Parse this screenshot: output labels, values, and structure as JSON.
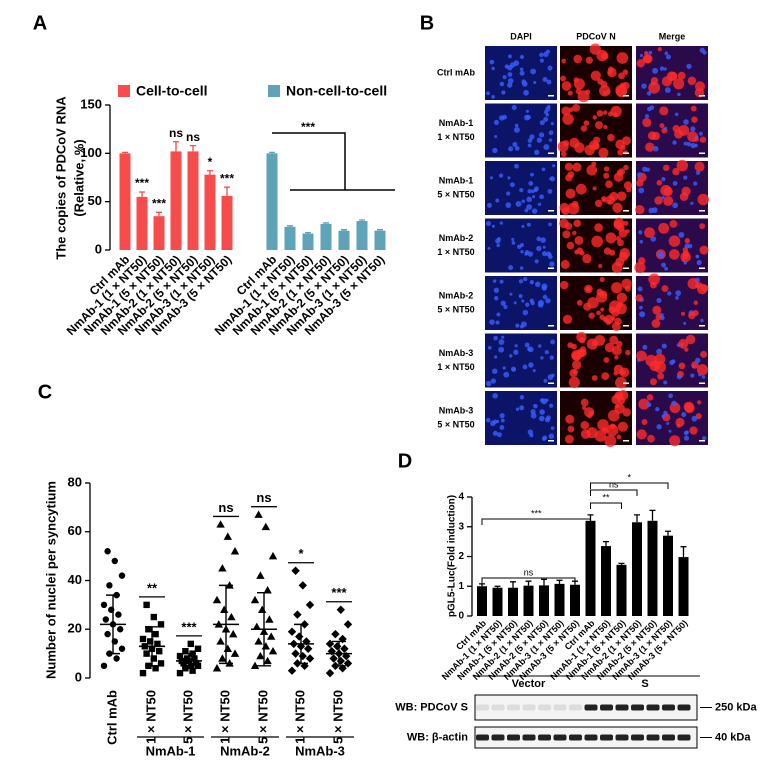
{
  "chart_data": [
    {
      "type": "bar",
      "panel": "A",
      "ylabel": [
        "The copies of PDCoV RNA",
        "(Relative, %)"
      ],
      "categories": [
        "Ctrl mAb",
        "NmAb-1 (1 × NT50)",
        "NmAb-1 (5 × NT50)",
        "NmAb-2 (1 × NT50)",
        "NmAb-2 (5 × NT50)",
        "NmAb-3 (1 × NT50)",
        "NmAb-3 (5 × NT50)",
        "Ctrl mAb",
        "NmAb-1 (1 × NT50)",
        "NmAb-1 (5 × NT50)",
        "NmAb-2 (1 × NT50)",
        "NmAb-2 (5 × NT50)",
        "NmAb-3 (1 × NT50)",
        "NmAb-3 (5 × NT50)"
      ],
      "series": [
        {
          "name": "Cell-to-cell",
          "color": "#f64c4c",
          "values": [
            100,
            55,
            35,
            102,
            102,
            78,
            56,
            null,
            null,
            null,
            null,
            null,
            null,
            null
          ],
          "errors": [
            1,
            5,
            4,
            10,
            6,
            4,
            9,
            null,
            null,
            null,
            null,
            null,
            null,
            null
          ],
          "significance": [
            null,
            "***",
            "***",
            "ns",
            "ns",
            "*",
            "***",
            null,
            null,
            null,
            null,
            null,
            null,
            null
          ]
        },
        {
          "name": "Non-cell-to-cell",
          "color": "#5fa3b8",
          "values": [
            null,
            null,
            null,
            null,
            null,
            null,
            null,
            100,
            24,
            17,
            27,
            20,
            30,
            20
          ],
          "errors": [
            null,
            null,
            null,
            null,
            null,
            null,
            null,
            1,
            1,
            1,
            1,
            1,
            1,
            1
          ]
        }
      ],
      "annotations": [
        "***"
      ],
      "ylim": [
        0,
        150
      ],
      "yticks": [
        0,
        50,
        100,
        150
      ]
    },
    {
      "type": "dot",
      "panel": "C",
      "ylabel": "Number of nuclei per syncytium",
      "categories": [
        "Ctrl mAb",
        "1 × NT50",
        "5 × NT50",
        "1 × NT50",
        "5 × NT50",
        "1 × NT50",
        "5 × NT50"
      ],
      "groups": [
        "NmAb-1",
        "NmAb-2",
        "NmAb-3"
      ],
      "markers": [
        "circle",
        "square",
        "square",
        "triangle",
        "triangle",
        "diamond",
        "diamond"
      ],
      "points": [
        [
          5,
          8,
          10,
          12,
          15,
          18,
          20,
          22,
          24,
          26,
          28,
          30,
          34,
          38,
          42,
          48,
          52
        ],
        [
          2,
          4,
          5,
          6,
          8,
          10,
          11,
          12,
          13,
          14,
          15,
          16,
          18,
          20,
          22,
          25,
          30
        ],
        [
          2,
          3,
          4,
          5,
          5,
          6,
          6,
          7,
          7,
          8,
          8,
          9,
          10,
          11,
          12,
          14
        ],
        [
          4,
          6,
          8,
          10,
          12,
          15,
          18,
          20,
          22,
          25,
          28,
          32,
          38,
          45,
          52,
          58,
          63
        ],
        [
          5,
          7,
          9,
          11,
          13,
          15,
          17,
          19,
          21,
          24,
          28,
          32,
          36,
          42,
          50,
          62,
          67
        ],
        [
          3,
          5,
          6,
          8,
          9,
          10,
          12,
          13,
          14,
          15,
          17,
          19,
          22,
          26,
          30,
          38,
          44
        ],
        [
          2,
          4,
          5,
          6,
          7,
          8,
          9,
          10,
          11,
          12,
          13,
          14,
          16,
          18,
          22,
          28
        ]
      ],
      "means": [
        22,
        13,
        7,
        22,
        20,
        14,
        10
      ],
      "sd": [
        12,
        8,
        3,
        16,
        15,
        8,
        5
      ],
      "significance": [
        null,
        "**",
        "***",
        "ns",
        "ns",
        "*",
        "***"
      ],
      "color": "#000000",
      "ylim": [
        0,
        80
      ],
      "yticks": [
        0,
        20,
        40,
        60,
        80
      ]
    },
    {
      "type": "bar",
      "panel": "D",
      "ylabel": "pGL5-Luc(Fold induction)",
      "categories": [
        "Ctrl mAb",
        "NmAb-1 (1 × NT50)",
        "NmAb-1 (5 × NT50)",
        "NmAb-2 (1 × NT50)",
        "NmAb-2 (5 × NT50)",
        "NmAb-3 (1 × NT50)",
        "NmAb-3 (5 × NT50)",
        "Ctrl mAb",
        "NmAb-1 (1 × NT50)",
        "NmAb-1 (5 × NT50)",
        "NmAb-2 (1 × NT50)",
        "NmAb-2 (5 × NT50)",
        "NmAb-3 (1 × NT50)",
        "NmAb-3 (5 × NT50)"
      ],
      "series": [
        {
          "color": "#000000",
          "values": [
            1,
            0.95,
            0.95,
            1.02,
            1.03,
            1.08,
            1.05,
            3.2,
            2.35,
            1.72,
            3.15,
            3.2,
            2.7,
            1.98
          ],
          "errors": [
            0.08,
            0.05,
            0.2,
            0.15,
            0.2,
            0.12,
            0.12,
            0.2,
            0.15,
            0.05,
            0.25,
            0.35,
            0.15,
            0.35
          ]
        }
      ],
      "brackets": [
        "ns",
        "***",
        "**",
        "ns",
        "*"
      ],
      "ylim": [
        0,
        4
      ],
      "yticks": [
        0,
        1,
        2,
        3,
        4
      ],
      "blot": {
        "groups": [
          "Vector",
          "S"
        ],
        "rows": [
          "WB: PDCoV S",
          "WB: β-actin"
        ],
        "markers": [
          "250 kDa",
          "40 kDa"
        ]
      }
    }
  ],
  "panel_b": {
    "panel": "B",
    "columns": [
      "DAPI",
      "PDCoV N",
      "Merge"
    ],
    "rows": [
      [
        "Ctrl mAb"
      ],
      [
        "NmAb-1",
        "1 × NT50"
      ],
      [
        "NmAb-1",
        "5 × NT50"
      ],
      [
        "NmAb-2",
        "1 × NT50"
      ],
      [
        "NmAb-2",
        "5 × NT50"
      ],
      [
        "NmAb-3",
        "1 × NT50"
      ],
      [
        "NmAb-3",
        "5 × NT50"
      ]
    ]
  }
}
